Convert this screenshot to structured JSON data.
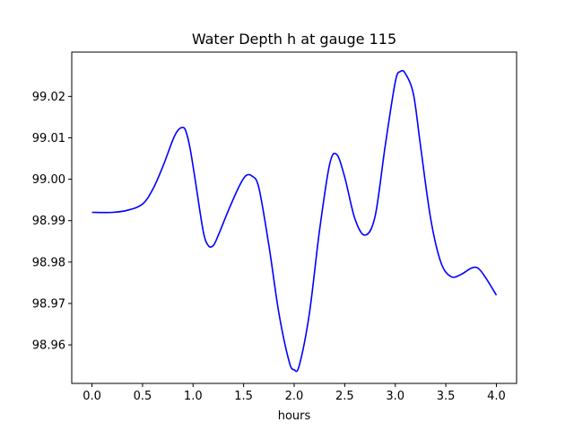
{
  "chart_data": {
    "type": "line",
    "title": "Water Depth h at gauge 115",
    "xlabel": "hours",
    "ylabel": "",
    "xlim": [
      -0.2,
      4.2
    ],
    "ylim": [
      98.9507,
      99.0307
    ],
    "xticks": [
      0.0,
      0.5,
      1.0,
      1.5,
      2.0,
      2.5,
      3.0,
      3.5,
      4.0
    ],
    "xtick_labels": [
      "0.0",
      "0.5",
      "1.0",
      "1.5",
      "2.0",
      "2.5",
      "3.0",
      "3.5",
      "4.0"
    ],
    "yticks": [
      98.96,
      98.97,
      98.98,
      98.99,
      99.0,
      99.01,
      99.02
    ],
    "ytick_labels": [
      "98.96",
      "98.97",
      "98.98",
      "98.99",
      "99.00",
      "99.01",
      "99.02"
    ],
    "grid": false,
    "series": [
      {
        "color": "#0000ff",
        "x": [
          0.0,
          0.2,
          0.35,
          0.5,
          0.6,
          0.7,
          0.8,
          0.85,
          0.9,
          0.93,
          0.97,
          1.02,
          1.1,
          1.15,
          1.2,
          1.25,
          1.35,
          1.45,
          1.52,
          1.58,
          1.65,
          1.75,
          1.85,
          1.95,
          2.0,
          2.05,
          2.15,
          2.25,
          2.35,
          2.42,
          2.5,
          2.6,
          2.7,
          2.8,
          2.9,
          3.0,
          3.05,
          3.1,
          3.18,
          3.25,
          3.35,
          3.45,
          3.55,
          3.65,
          3.75,
          3.82,
          3.9,
          4.0
        ],
        "y": [
          98.992,
          98.992,
          98.9925,
          98.994,
          98.9975,
          99.003,
          99.0095,
          99.0118,
          99.0125,
          99.0115,
          99.0075,
          99.0,
          98.9875,
          98.984,
          98.984,
          98.9865,
          98.9925,
          98.998,
          99.0008,
          99.0008,
          98.998,
          98.984,
          98.9675,
          98.956,
          98.954,
          98.955,
          98.9675,
          98.9875,
          99.0035,
          99.006,
          99.0005,
          98.9905,
          98.9865,
          98.991,
          99.008,
          99.0235,
          99.026,
          99.0255,
          99.0205,
          99.008,
          98.9905,
          98.98,
          98.9765,
          98.977,
          98.9785,
          98.9785,
          98.976,
          98.972
        ]
      }
    ]
  }
}
